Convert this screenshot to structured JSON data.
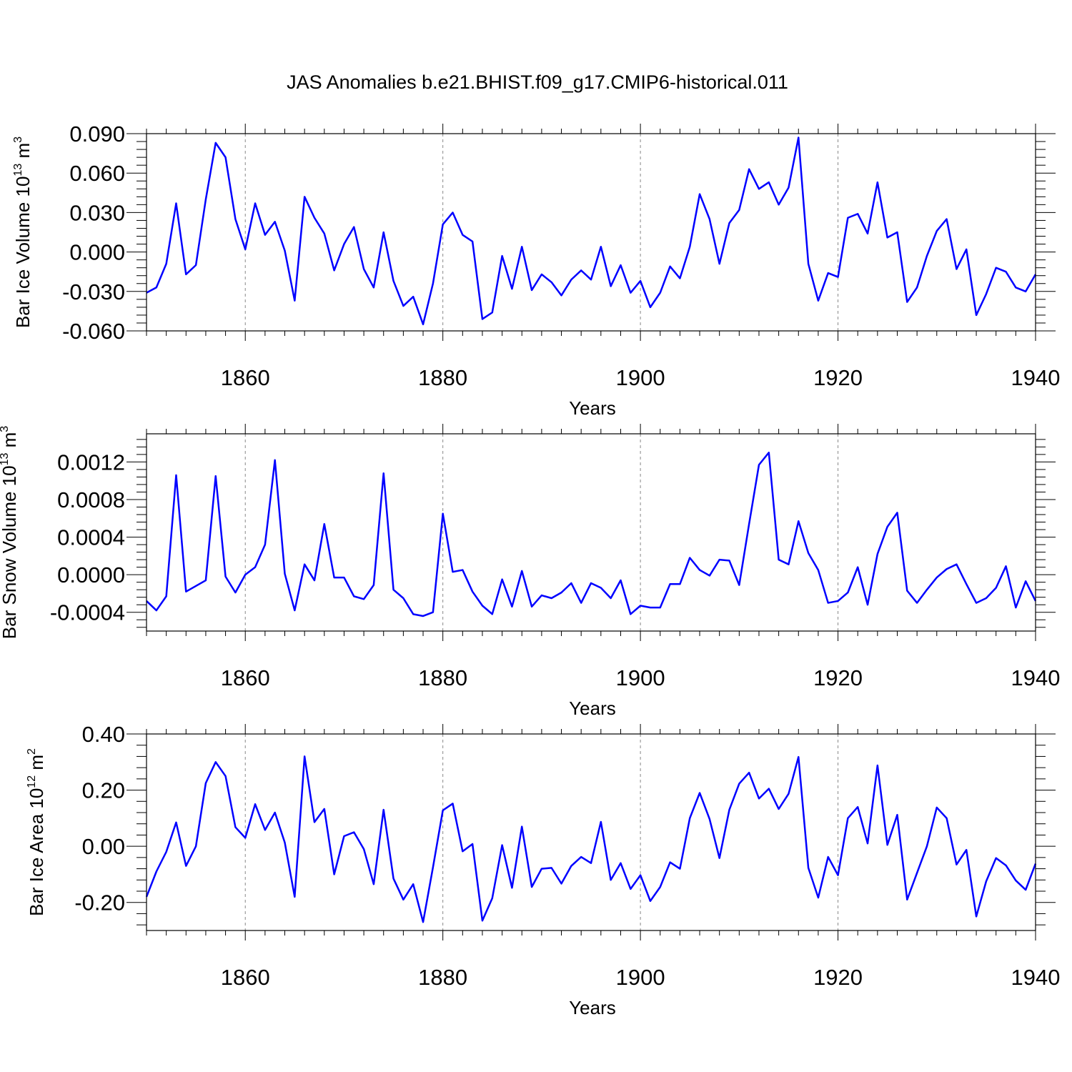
{
  "title": "JAS Anomalies b.e21.BHIST.f09_g17.CMIP6-historical.011",
  "chart_data": [
    {
      "type": "line",
      "name": "ice-volume",
      "ylabel_main": "Bar Ice Volume 10",
      "ylabel_exp": "13",
      "ylabel_unit": " m",
      "ylabel_unit_exp": "3",
      "xlabel": "Years",
      "xlim": [
        1850,
        1940
      ],
      "ylim": [
        -0.06,
        0.09
      ],
      "yticks": [
        -0.06,
        -0.03,
        0.0,
        0.03,
        0.06,
        0.09
      ],
      "ytick_labels": [
        "-0.060",
        "-0.030",
        "0.000",
        "0.030",
        "0.060",
        "0.090"
      ],
      "xticks": [
        1860,
        1880,
        1900,
        1920,
        1940
      ],
      "xtick_labels": [
        "1860",
        "1880",
        "1900",
        "1920",
        "1940"
      ],
      "line_color": "#0000ff",
      "x_start": 1850,
      "values": [
        -0.031,
        -0.027,
        -0.009,
        0.037,
        -0.017,
        -0.01,
        0.04,
        0.083,
        0.072,
        0.025,
        0.002,
        0.037,
        0.013,
        0.023,
        0.001,
        -0.037,
        0.042,
        0.026,
        0.014,
        -0.014,
        0.006,
        0.019,
        -0.013,
        -0.027,
        0.015,
        -0.022,
        -0.041,
        -0.034,
        -0.055,
        -0.024,
        0.021,
        0.03,
        0.013,
        0.008,
        -0.051,
        -0.046,
        -0.003,
        -0.028,
        0.004,
        -0.029,
        -0.017,
        -0.023,
        -0.033,
        -0.021,
        -0.014,
        -0.021,
        0.004,
        -0.026,
        -0.01,
        -0.031,
        -0.022,
        -0.042,
        -0.031,
        -0.011,
        -0.02,
        0.004,
        0.044,
        0.025,
        -0.009,
        0.022,
        0.032,
        0.063,
        0.048,
        0.053,
        0.036,
        0.049,
        0.087,
        -0.009,
        -0.037,
        -0.016,
        -0.019,
        0.026,
        0.029,
        0.014,
        0.053,
        0.011,
        0.015,
        -0.038,
        -0.027,
        -0.003,
        0.016,
        0.025,
        -0.013,
        0.002,
        -0.048,
        -0.032,
        -0.012,
        -0.015,
        -0.027,
        -0.03,
        -0.017
      ]
    },
    {
      "type": "line",
      "name": "snow-volume",
      "ylabel_main": "Bar Snow Volume 10",
      "ylabel_exp": "13",
      "ylabel_unit": " m",
      "ylabel_unit_exp": "3",
      "xlabel": "Years",
      "xlim": [
        1850,
        1940
      ],
      "ylim": [
        -0.0006,
        0.0015
      ],
      "yticks": [
        -0.0004,
        0.0,
        0.0004,
        0.0008,
        0.0012
      ],
      "ytick_labels": [
        "-0.0004",
        "0.0000",
        "0.0004",
        "0.0008",
        "0.0012"
      ],
      "xticks": [
        1860,
        1880,
        1900,
        1920,
        1940
      ],
      "xtick_labels": [
        "1860",
        "1880",
        "1900",
        "1920",
        "1940"
      ],
      "line_color": "#0000ff",
      "x_start": 1850,
      "values": [
        -0.00028,
        -0.00038,
        -0.00023,
        0.00106,
        -0.00018,
        -0.00012,
        -6e-05,
        0.00105,
        -2e-05,
        -0.00019,
        0.0,
        8e-05,
        0.00032,
        0.00122,
        1e-05,
        -0.00038,
        0.00011,
        -6e-05,
        0.00054,
        -3e-05,
        -3e-05,
        -0.00023,
        -0.00026,
        -0.00011,
        0.00108,
        -0.00016,
        -0.00025,
        -0.00042,
        -0.00044,
        -0.0004,
        0.00065,
        3e-05,
        5e-05,
        -0.00018,
        -0.00033,
        -0.00042,
        -5e-05,
        -0.00034,
        4e-05,
        -0.00034,
        -0.00022,
        -0.00025,
        -0.00019,
        -9e-05,
        -0.0003,
        -9e-05,
        -0.00014,
        -0.00025,
        -6e-05,
        -0.00042,
        -0.00033,
        -0.00035,
        -0.00035,
        -0.0001,
        -0.0001,
        0.00018,
        5e-05,
        -1e-05,
        0.00016,
        0.00015,
        -0.00011,
        0.00054,
        0.00117,
        0.0013,
        0.00016,
        0.00011,
        0.00057,
        0.00023,
        5e-05,
        -0.0003,
        -0.00028,
        -0.00019,
        8e-05,
        -0.00032,
        0.00022,
        0.00051,
        0.00066,
        -0.00017,
        -0.0003,
        -0.00016,
        -3e-05,
        6e-05,
        0.00011,
        -0.0001,
        -0.0003,
        -0.00025,
        -0.00014,
        9e-05,
        -0.00035,
        -7e-05,
        -0.00028
      ]
    },
    {
      "type": "line",
      "name": "ice-area",
      "ylabel_main": "Bar Ice Area 10",
      "ylabel_exp": "12",
      "ylabel_unit": " m",
      "ylabel_unit_exp": "2",
      "xlabel": "Years",
      "xlim": [
        1850,
        1940
      ],
      "ylim": [
        -0.3,
        0.4
      ],
      "yticks": [
        -0.2,
        0.0,
        0.2,
        0.4
      ],
      "ytick_labels": [
        "-0.20",
        "0.00",
        "0.20",
        "0.40"
      ],
      "xticks": [
        1860,
        1880,
        1900,
        1920,
        1940
      ],
      "xtick_labels": [
        "1860",
        "1880",
        "1900",
        "1920",
        "1940"
      ],
      "line_color": "#0000ff",
      "x_start": 1850,
      "values": [
        -0.18,
        -0.09,
        -0.02,
        0.085,
        -0.07,
        0.0,
        0.225,
        0.3,
        0.25,
        0.068,
        0.03,
        0.15,
        0.058,
        0.12,
        0.013,
        -0.18,
        0.32,
        0.086,
        0.133,
        -0.1,
        0.036,
        0.05,
        -0.01,
        -0.135,
        0.13,
        -0.115,
        -0.19,
        -0.135,
        -0.27,
        -0.075,
        0.128,
        0.152,
        -0.018,
        0.008,
        -0.265,
        -0.185,
        0.004,
        -0.148,
        0.07,
        -0.145,
        -0.08,
        -0.077,
        -0.133,
        -0.07,
        -0.038,
        -0.06,
        0.087,
        -0.12,
        -0.06,
        -0.152,
        -0.103,
        -0.195,
        -0.145,
        -0.057,
        -0.08,
        0.1,
        0.19,
        0.097,
        -0.042,
        0.13,
        0.223,
        0.262,
        0.17,
        0.205,
        0.133,
        0.187,
        0.318,
        -0.077,
        -0.183,
        -0.038,
        -0.103,
        0.1,
        0.14,
        0.01,
        0.288,
        0.005,
        0.112,
        -0.19,
        -0.095,
        0.0,
        0.138,
        0.1,
        -0.065,
        -0.013,
        -0.25,
        -0.125,
        -0.042,
        -0.068,
        -0.122,
        -0.155,
        -0.062
      ]
    }
  ]
}
